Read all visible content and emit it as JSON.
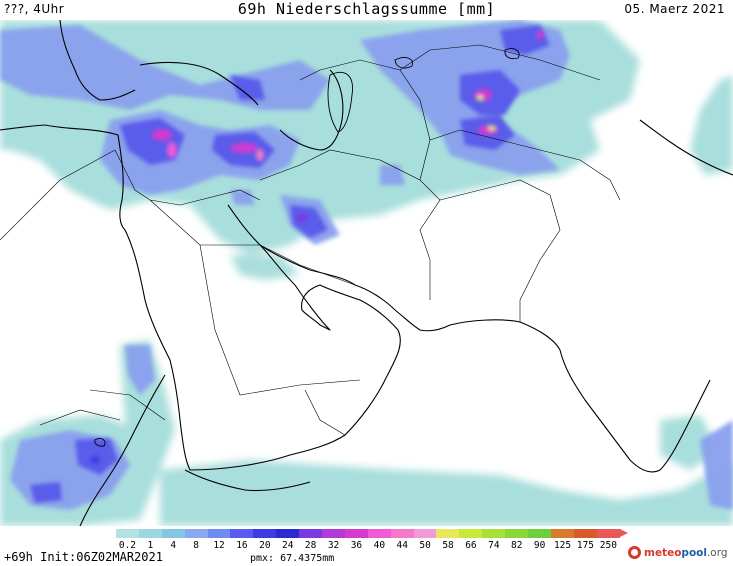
{
  "header": {
    "left": "???, 4Uhr",
    "title": "69h Niederschlagssumme [mm]",
    "date": "05. Maerz 2021"
  },
  "legend": {
    "labels": [
      "0.2",
      "1",
      "4",
      "8",
      "12",
      "16",
      "20",
      "24",
      "28",
      "32",
      "36",
      "40",
      "44",
      "50",
      "58",
      "66",
      "74",
      "82",
      "90",
      "125",
      "175",
      "250"
    ],
    "colors": [
      "#b2e2e2",
      "#9cd6e0",
      "#86c6e4",
      "#8aa8f0",
      "#6c8cf0",
      "#5a5af0",
      "#3c3ce4",
      "#2a2ad0",
      "#7a3ae0",
      "#b43ad8",
      "#d23ad0",
      "#ee5ad8",
      "#f27ac8",
      "#f29ad8",
      "#e8e85a",
      "#c8e83a",
      "#a8e03a",
      "#88d83a",
      "#6cd03a",
      "#d87a2a",
      "#d85a2a",
      "#e85858"
    ]
  },
  "footer": {
    "run": "+69h Init:06Z02MAR2021",
    "pmx": "pmx: 67.4375mm"
  },
  "brand": {
    "p1": "meteo",
    "p2": "pool",
    "p3": ".org"
  }
}
